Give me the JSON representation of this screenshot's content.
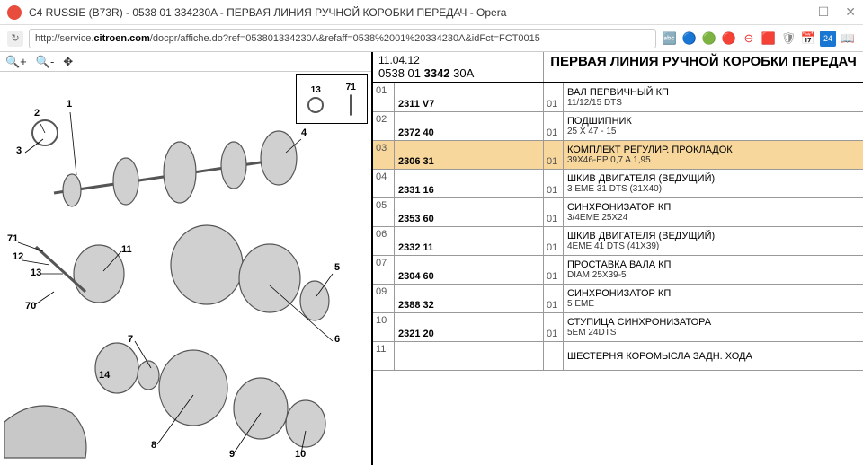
{
  "window": {
    "title": "C4 RUSSIE (B73R) - 0538 01 334230A - ПЕРВАЯ ЛИНИЯ РУЧНОЙ КОРОБКИ ПЕРЕДАЧ - Opera",
    "min": "—",
    "max": "☐",
    "close": "✕"
  },
  "url": {
    "prefix": "http://service.",
    "domain": "citroen.com",
    "path": "/docpr/affiche.do?ref=053801334230A&refaff=0538%2001%20334230A&idFct=FCT0015"
  },
  "ext": [
    "🔤",
    "🔵",
    "🟢",
    "🔴",
    "⊖",
    "🟥",
    "🛡",
    "📅",
    "24",
    "📖"
  ],
  "toolbar": {
    "zoom_in": "🔍+",
    "zoom_out": "🔍-",
    "move": "✥"
  },
  "inset": {
    "l": "13",
    "r": "71"
  },
  "callouts": {
    "n1": "1",
    "n2": "2",
    "n3": "3",
    "n4": "4",
    "n5": "5",
    "n6": "6",
    "n7": "7",
    "n8": "8",
    "n9": "9",
    "n10": "10",
    "n11": "11",
    "n12": "12",
    "n13": "13",
    "n14": "14",
    "n70": "70",
    "n71": "71"
  },
  "header": {
    "date": "11.04.12",
    "code_a": "0538 01 ",
    "code_b": "3342",
    "code_c": " 30A",
    "title": "ПЕРВАЯ ЛИНИЯ РУЧНОЙ КОРОБКИ ПЕРЕДАЧ"
  },
  "rows": [
    {
      "n": "01",
      "code": "2311 V7",
      "q": "01",
      "name": "ВАЛ ПЕРВИЧНЫЙ КП",
      "desc": "11/12/15 DTS",
      "hl": false
    },
    {
      "n": "02",
      "code": "2372 40",
      "q": "01",
      "name": "ПОДШИПНИК",
      "desc": "25 X 47 - 15",
      "hl": false
    },
    {
      "n": "03",
      "code": "2306 31",
      "q": "01",
      "name": "КОМПЛЕКТ РЕГУЛИР. ПРОКЛАДОК",
      "desc": "39X46-EP 0,7 A 1,95",
      "hl": true
    },
    {
      "n": "04",
      "code": "2331 16",
      "q": "01",
      "name": "ШКИВ ДВИГАТЕЛЯ (ВЕДУЩИЙ)",
      "desc": "3 EME 31 DTS (31X40)",
      "hl": false
    },
    {
      "n": "05",
      "code": "2353 60",
      "q": "01",
      "name": "СИНХРОНИЗАТОР КП",
      "desc": "3/4EME 25X24",
      "hl": false
    },
    {
      "n": "06",
      "code": "2332 11",
      "q": "01",
      "name": "ШКИВ ДВИГАТЕЛЯ (ВЕДУЩИЙ)",
      "desc": "4EME 41 DTS (41X39)",
      "hl": false
    },
    {
      "n": "07",
      "code": "2304 60",
      "q": "01",
      "name": "ПРОСТАВКА ВАЛА КП",
      "desc": "DIAM 25X39-5",
      "hl": false
    },
    {
      "n": "09",
      "code": "2388 32",
      "q": "01",
      "name": "СИНХРОНИЗАТОР КП",
      "desc": "5 EME",
      "hl": false
    },
    {
      "n": "10",
      "code": "2321 20",
      "q": "01",
      "name": "СТУПИЦА СИНХРОНИЗАТОРА",
      "desc": "5EM 24DTS",
      "hl": false
    },
    {
      "n": "11",
      "code": "",
      "q": "",
      "name": "ШЕСТЕРНЯ КОРОМЫСЛА ЗАДН. ХОДА",
      "desc": "",
      "hl": false
    }
  ]
}
